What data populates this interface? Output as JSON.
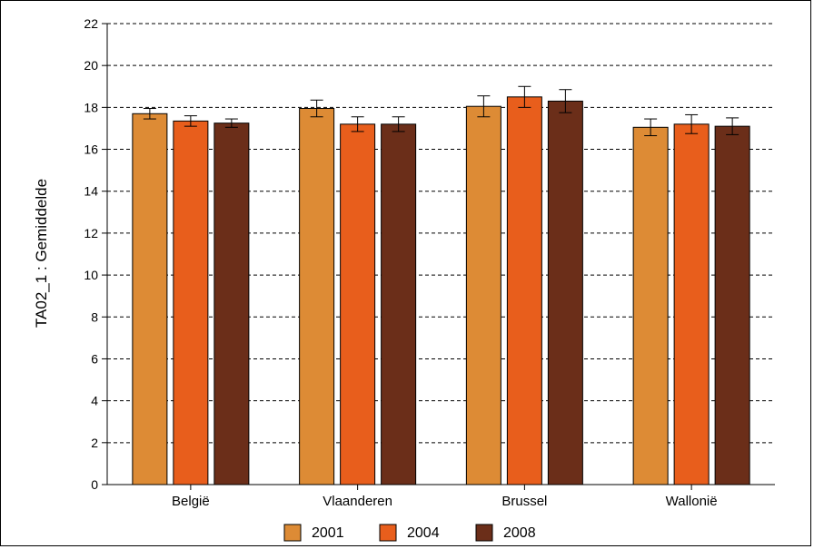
{
  "chart_data": {
    "type": "bar",
    "ylabel": "TA02_1 : Gemiddelde",
    "xlabel": "",
    "ylim": [
      0,
      22
    ],
    "yticks": [
      0,
      2,
      4,
      6,
      8,
      10,
      12,
      14,
      16,
      18,
      20,
      22
    ],
    "grid": true,
    "legend_position": "bottom",
    "categories": [
      "België",
      "Vlaanderen",
      "Brussel",
      "Wallonië"
    ],
    "series": [
      {
        "name": "2001",
        "color": "#dd8b35",
        "values": [
          17.7,
          17.95,
          18.05,
          17.05
        ],
        "err": [
          0.25,
          0.4,
          0.5,
          0.4
        ]
      },
      {
        "name": "2004",
        "color": "#e85e1c",
        "values": [
          17.35,
          17.2,
          18.5,
          17.2
        ],
        "err": [
          0.25,
          0.35,
          0.5,
          0.45
        ]
      },
      {
        "name": "2008",
        "color": "#6b2e19",
        "values": [
          17.25,
          17.2,
          18.3,
          17.1
        ],
        "err": [
          0.2,
          0.35,
          0.55,
          0.4
        ]
      }
    ]
  }
}
